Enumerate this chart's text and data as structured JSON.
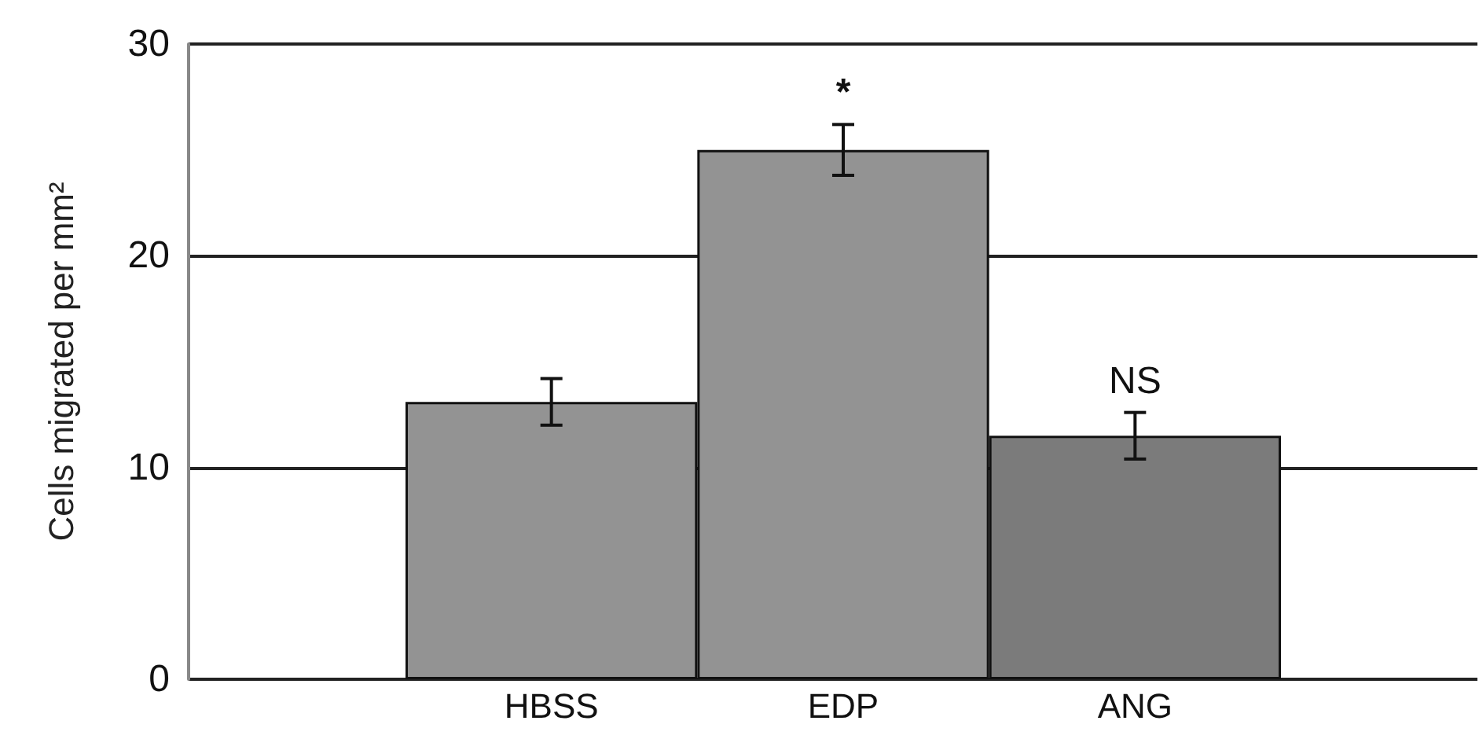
{
  "chart_data": {
    "type": "bar",
    "ylabel": "Cells migrated per mm²",
    "categories": [
      "HBSS",
      "EDP",
      "ANG"
    ],
    "values": [
      13.1,
      25.0,
      11.5
    ],
    "errors": [
      1.1,
      1.2,
      1.1
    ],
    "colors": [
      "#939393",
      "#939393",
      "#7b7b7b"
    ],
    "ylim": [
      0,
      30
    ],
    "yticks": [
      0,
      10,
      20,
      30
    ],
    "grid": "y",
    "annotations": [
      "*",
      "NS"
    ]
  }
}
